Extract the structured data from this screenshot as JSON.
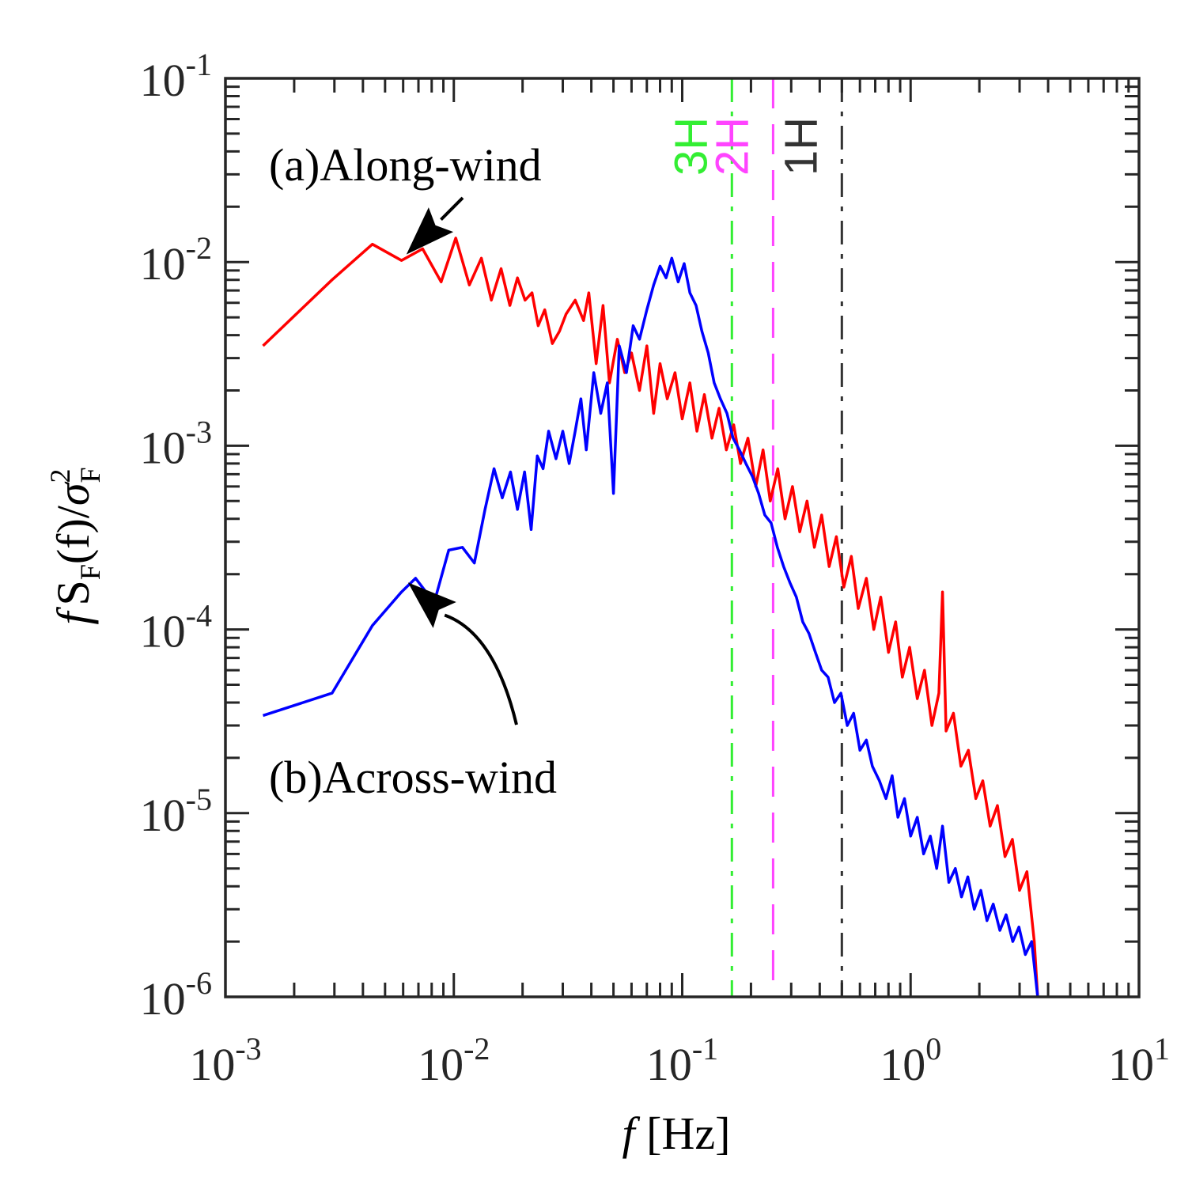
{
  "chart_data": {
    "type": "line",
    "title": "",
    "xlabel": {
      "italic": "f",
      "rest": " [Hz]"
    },
    "ylabel": {
      "f": "f",
      "S": "S",
      "sub1": "F",
      "mid": "(f)/",
      "sigma": "σ",
      "sub2": "F",
      "sup": "2"
    },
    "xscale": "log",
    "yscale": "log",
    "xlim": [
      0.001,
      10
    ],
    "ylim": [
      1e-06,
      0.1
    ],
    "xticks": [
      {
        "value": 0.001,
        "base": "10",
        "exp": "-3"
      },
      {
        "value": 0.01,
        "base": "10",
        "exp": "-2"
      },
      {
        "value": 0.1,
        "base": "10",
        "exp": "-1"
      },
      {
        "value": 1,
        "base": "10",
        "exp": "0"
      },
      {
        "value": 10,
        "base": "10",
        "exp": "1"
      }
    ],
    "yticks": [
      {
        "value": 0.1,
        "base": "10",
        "exp": "-1"
      },
      {
        "value": 0.01,
        "base": "10",
        "exp": "-2"
      },
      {
        "value": 0.001,
        "base": "10",
        "exp": "-3"
      },
      {
        "value": 0.0001,
        "base": "10",
        "exp": "-4"
      },
      {
        "value": 1e-05,
        "base": "10",
        "exp": "-5"
      },
      {
        "value": 1e-06,
        "base": "10",
        "exp": "-6"
      }
    ],
    "grid": false,
    "legend": "none",
    "series": [
      {
        "name": "Along-wind",
        "color": "#ff0000",
        "x": [
          0.00146,
          0.00293,
          0.0044,
          0.0059,
          0.0073,
          0.0088,
          0.0102,
          0.0117,
          0.0132,
          0.0146,
          0.0161,
          0.0176,
          0.019,
          0.0205,
          0.022,
          0.0234,
          0.025,
          0.027,
          0.029,
          0.031,
          0.034,
          0.037,
          0.039,
          0.042,
          0.045,
          0.048,
          0.052,
          0.056,
          0.06,
          0.065,
          0.07,
          0.075,
          0.08,
          0.086,
          0.093,
          0.1,
          0.108,
          0.116,
          0.125,
          0.135,
          0.145,
          0.156,
          0.168,
          0.18,
          0.194,
          0.21,
          0.226,
          0.243,
          0.262,
          0.282,
          0.304,
          0.327,
          0.352,
          0.379,
          0.408,
          0.44,
          0.473,
          0.51,
          0.55,
          0.59,
          0.64,
          0.69,
          0.74,
          0.8,
          0.86,
          0.92,
          0.99,
          1.07,
          1.15,
          1.24,
          1.33,
          1.38,
          1.43,
          1.54,
          1.66,
          1.79,
          1.93,
          2.07,
          2.23,
          2.4,
          2.59,
          2.79,
          3.0,
          3.23,
          3.48,
          3.6
        ],
        "y": [
          0.0035,
          0.008,
          0.0125,
          0.0102,
          0.0118,
          0.0078,
          0.0135,
          0.0075,
          0.0105,
          0.0062,
          0.0092,
          0.0058,
          0.0082,
          0.0062,
          0.0068,
          0.0045,
          0.0055,
          0.0036,
          0.0042,
          0.0052,
          0.0062,
          0.0048,
          0.0068,
          0.0028,
          0.0058,
          0.0022,
          0.0038,
          0.0025,
          0.0032,
          0.002,
          0.0035,
          0.0015,
          0.0028,
          0.0018,
          0.0025,
          0.0014,
          0.0022,
          0.0012,
          0.0019,
          0.0011,
          0.0016,
          0.00095,
          0.0013,
          0.0008,
          0.0011,
          0.0006,
          0.00095,
          0.0005,
          0.00075,
          0.0004,
          0.0006,
          0.00034,
          0.0005,
          0.00028,
          0.00042,
          0.00022,
          0.00032,
          0.00017,
          0.00025,
          0.00013,
          0.00019,
          0.0001,
          0.00015,
          7.5e-05,
          0.00011,
          5.5e-05,
          8e-05,
          4.2e-05,
          6e-05,
          3e-05,
          4.5e-05,
          0.00016,
          2.8e-05,
          3.5e-05,
          1.8e-05,
          2.2e-05,
          1.2e-05,
          1.5e-05,
          8.5e-06,
          1.1e-05,
          5.8e-06,
          7.2e-06,
          3.8e-06,
          4.8e-06,
          2e-06,
          1e-06
        ]
      },
      {
        "name": "Across-wind",
        "color": "#0000ff",
        "x": [
          0.00146,
          0.00293,
          0.0044,
          0.0059,
          0.0068,
          0.0082,
          0.0095,
          0.0109,
          0.0123,
          0.0137,
          0.015,
          0.0163,
          0.0177,
          0.019,
          0.0204,
          0.0218,
          0.0232,
          0.0246,
          0.026,
          0.028,
          0.03,
          0.032,
          0.034,
          0.036,
          0.038,
          0.041,
          0.044,
          0.047,
          0.05,
          0.053,
          0.057,
          0.061,
          0.065,
          0.07,
          0.075,
          0.08,
          0.085,
          0.09,
          0.096,
          0.102,
          0.108,
          0.115,
          0.122,
          0.13,
          0.138,
          0.147,
          0.157,
          0.167,
          0.178,
          0.19,
          0.203,
          0.216,
          0.23,
          0.245,
          0.261,
          0.278,
          0.296,
          0.316,
          0.337,
          0.359,
          0.383,
          0.408,
          0.435,
          0.464,
          0.495,
          0.528,
          0.563,
          0.6,
          0.64,
          0.68,
          0.73,
          0.78,
          0.83,
          0.88,
          0.94,
          1.0,
          1.07,
          1.14,
          1.22,
          1.3,
          1.38,
          1.47,
          1.57,
          1.67,
          1.78,
          1.9,
          2.03,
          2.16,
          2.3,
          2.46,
          2.62,
          2.8,
          2.98,
          3.18,
          3.39,
          3.6
        ],
        "y": [
          3.4e-05,
          4.5e-05,
          0.000105,
          0.00016,
          0.00019,
          0.00014,
          0.00027,
          0.00028,
          0.00023,
          0.00045,
          0.00075,
          0.00052,
          0.00072,
          0.00045,
          0.00072,
          0.00035,
          0.00088,
          0.00075,
          0.0012,
          0.00085,
          0.0012,
          0.0008,
          0.0012,
          0.0018,
          0.00095,
          0.0025,
          0.0015,
          0.0022,
          0.00055,
          0.0035,
          0.0025,
          0.0045,
          0.0038,
          0.0055,
          0.0075,
          0.0095,
          0.0082,
          0.0105,
          0.0078,
          0.0098,
          0.0068,
          0.0058,
          0.0042,
          0.0032,
          0.0022,
          0.0018,
          0.0015,
          0.0011,
          0.00095,
          0.0008,
          0.00068,
          0.00055,
          0.00042,
          0.00038,
          0.00028,
          0.00022,
          0.00018,
          0.00015,
          0.00011,
          9.5e-05,
          7.5e-05,
          6e-05,
          5.5e-05,
          4e-05,
          4.5e-05,
          3e-05,
          3.5e-05,
          2.2e-05,
          2.5e-05,
          1.8e-05,
          1.5e-05,
          1.2e-05,
          1.6e-05,
          9.5e-06,
          1.2e-05,
          7.5e-06,
          9.5e-06,
          6e-06,
          7.5e-06,
          5e-06,
          8.5e-06,
          4.2e-06,
          5e-06,
          3.5e-06,
          4.5e-06,
          3e-06,
          3.8e-06,
          2.6e-06,
          3.2e-06,
          2.3e-06,
          2.8e-06,
          2e-06,
          2.4e-06,
          1.7e-06,
          2e-06,
          1e-06
        ]
      }
    ],
    "vlines": [
      {
        "label": "3H",
        "x": 0.165,
        "color": "#33ee33",
        "dash": "dashdot"
      },
      {
        "label": "2H",
        "x": 0.25,
        "color": "#ff44ff",
        "dash": "dashed"
      },
      {
        "label": "1H",
        "x": 0.5,
        "color": "#333333",
        "dash": "dashdot"
      }
    ],
    "annotations": [
      {
        "text": "(a)Along-wind",
        "points_to": {
          "x": 0.0062,
          "y": 0.011
        }
      },
      {
        "text": "(b)Across-wind",
        "points_to": {
          "x": 0.0063,
          "y": 0.00018
        }
      }
    ]
  }
}
